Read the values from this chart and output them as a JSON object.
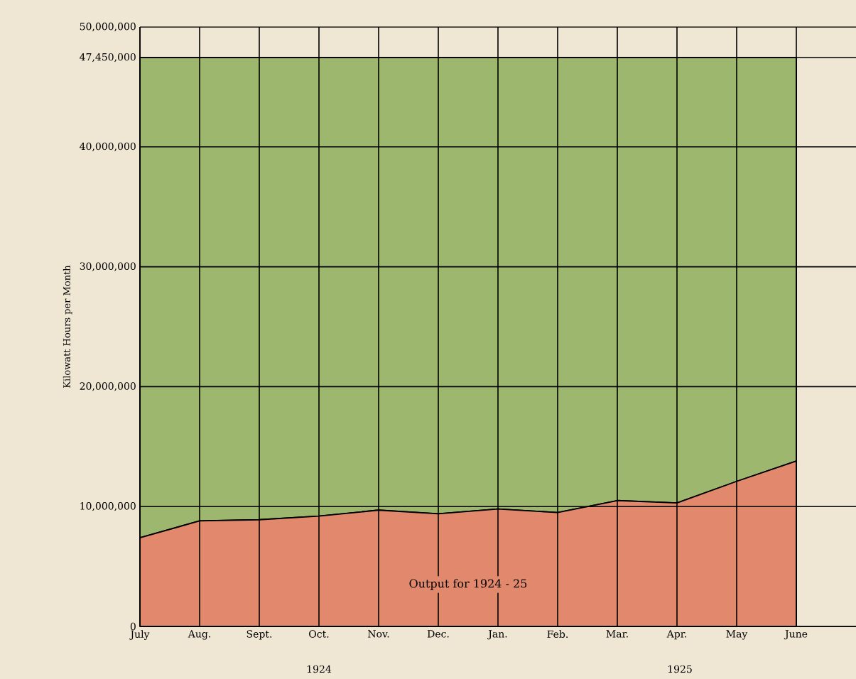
{
  "chart_data": {
    "type": "area",
    "ylabel": "Kilowatt Hours per Month",
    "categories": [
      "July",
      "Aug.",
      "Sept.",
      "Oct.",
      "Nov.",
      "Dec.",
      "Jan.",
      "Feb.",
      "Mar.",
      "Apr.",
      "May",
      "June"
    ],
    "stacked": true,
    "series": [
      {
        "name": "Output for 1924 - 25",
        "color": "#e2886c",
        "values": [
          7400000,
          8800000,
          8900000,
          9200000,
          9700000,
          9400000,
          9800000,
          9500000,
          10500000,
          10300000,
          12100000,
          13800000
        ]
      },
      {
        "color": "#9db86e",
        "values": [
          40050000,
          38650000,
          38550000,
          38250000,
          37750000,
          38050000,
          37650000,
          37950000,
          36950000,
          37150000,
          35350000,
          33650000
        ]
      }
    ],
    "ylim": [
      0,
      50000000
    ],
    "yticks": [
      0,
      {
        "value": 10000000,
        "label": "10,000,000"
      },
      {
        "value": 20000000,
        "label": "20,000,000"
      },
      {
        "value": 30000000,
        "label": "30,000,000"
      },
      {
        "value": 40000000,
        "label": "40,000,000"
      },
      {
        "value": 47450000,
        "label": "47,450,000"
      },
      {
        "value": 50000000,
        "label": "50,000,000"
      }
    ],
    "annotations": [
      "1924",
      "1925"
    ],
    "grid": true,
    "marker": "none",
    "line_style": "solid"
  }
}
